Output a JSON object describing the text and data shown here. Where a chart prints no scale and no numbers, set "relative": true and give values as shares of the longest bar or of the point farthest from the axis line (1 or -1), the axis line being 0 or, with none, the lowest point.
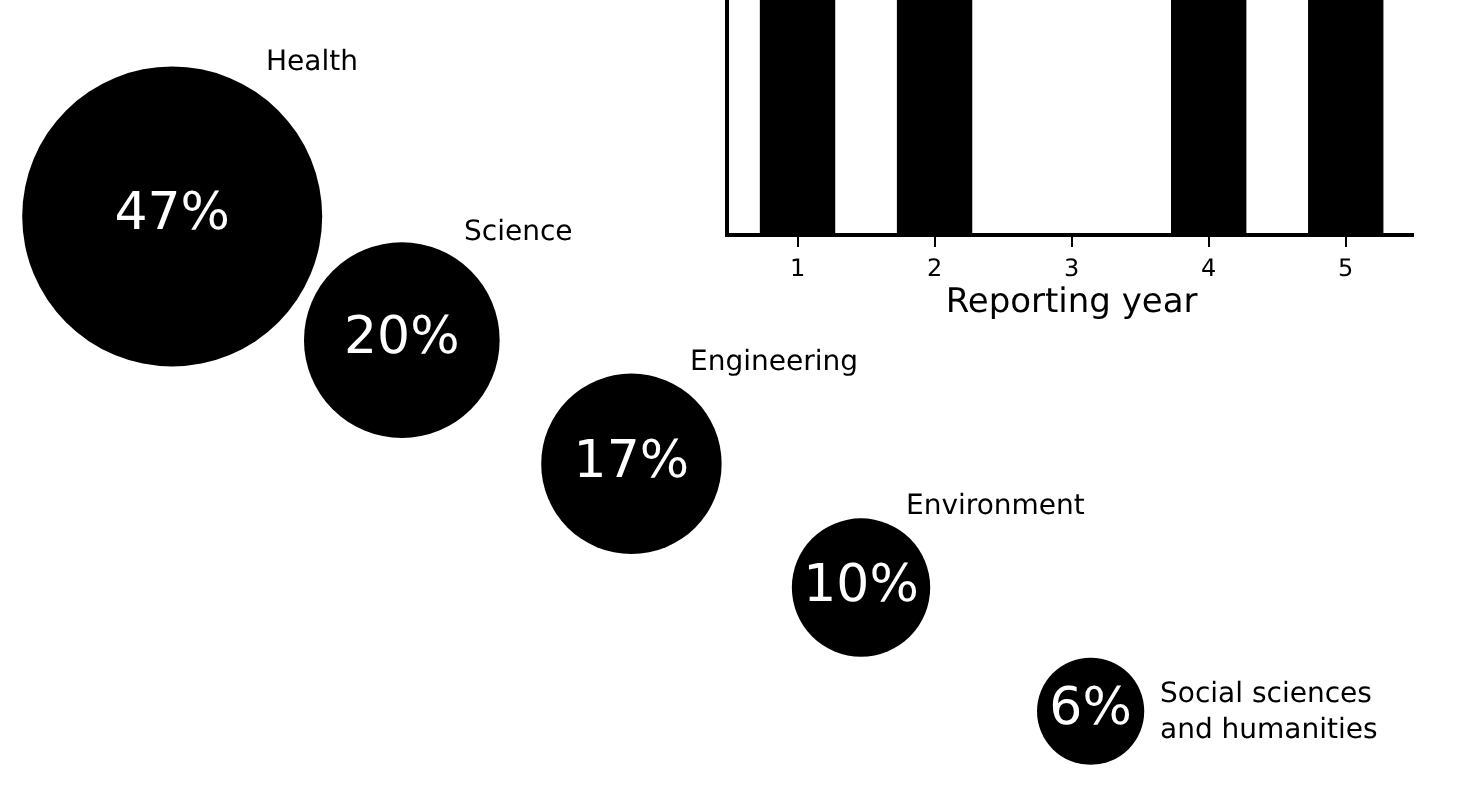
{
  "chart_data": [
    {
      "type": "other",
      "categories": [
        "Health",
        "Science",
        "Engineering",
        "Environment",
        "Social sciences and humanities"
      ],
      "values": [
        47,
        20,
        17,
        10,
        6
      ],
      "value_labels": [
        "47%",
        "20%",
        "17%",
        "10%",
        "6%"
      ],
      "color": "#000000"
    },
    {
      "type": "bar",
      "relative": true,
      "categories": [
        "1",
        "2",
        "3",
        "4",
        "5"
      ],
      "values": [
        1,
        1,
        0,
        1,
        1
      ],
      "color": "#000000",
      "xlabel": "Reporting year"
    }
  ]
}
